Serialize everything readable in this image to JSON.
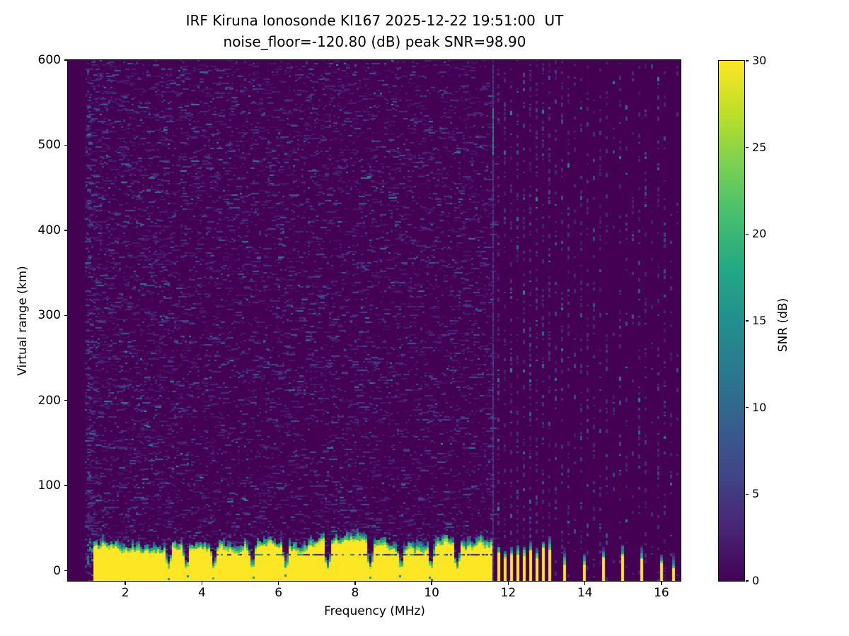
{
  "chart_data": {
    "type": "heatmap",
    "title": "IRF Kiruna Ionosonde KI167 2025-12-22 19:51:00  UT",
    "subtitle": "noise_floor=-120.80 (dB) peak SNR=98.90",
    "station": "KI167",
    "timestamp_ut": "2025-12-22 19:51:00",
    "noise_floor_db": -120.8,
    "peak_snr_db": 98.9,
    "xlabel": "Frequency (MHz)",
    "ylabel": "Virtual range (km)",
    "xlim": [
      0.5,
      16.5
    ],
    "ylim": [
      -12,
      600
    ],
    "x_ticks": [
      2,
      4,
      6,
      8,
      10,
      12,
      14,
      16
    ],
    "y_ticks": [
      0,
      100,
      200,
      300,
      400,
      500,
      600
    ],
    "grid": false,
    "legend": null,
    "colorbar": {
      "label": "SNR (dB)",
      "min": 0,
      "max": 30,
      "ticks": [
        0,
        5,
        10,
        15,
        20,
        25,
        30
      ],
      "position": "right"
    },
    "colormap": {
      "name": "viridis",
      "stops": [
        [
          0.0,
          [
            68,
            1,
            84
          ]
        ],
        [
          0.1,
          [
            72,
            36,
            117
          ]
        ],
        [
          0.2,
          [
            65,
            68,
            135
          ]
        ],
        [
          0.3,
          [
            53,
            95,
            141
          ]
        ],
        [
          0.4,
          [
            42,
            120,
            142
          ]
        ],
        [
          0.5,
          [
            33,
            144,
            141
          ]
        ],
        [
          0.6,
          [
            34,
            168,
            132
          ]
        ],
        [
          0.7,
          [
            68,
            190,
            112
          ]
        ],
        [
          0.8,
          [
            122,
            209,
            81
          ]
        ],
        [
          0.9,
          [
            189,
            223,
            38
          ]
        ],
        [
          1.0,
          [
            253,
            231,
            37
          ]
        ]
      ]
    },
    "features": {
      "seed": 42,
      "data_start_mhz": 0.94,
      "background_snr_db": 0,
      "clutter_band": {
        "freq_start_mhz": 1.16,
        "freq_end_mhz": 11.57,
        "yellow_top_km_range": [
          20,
          36
        ],
        "fringe_extent_km": 14,
        "artifact_line_km": 19.5,
        "snr_db": 30
      },
      "pre_band_fringe_mhz": [
        0.94,
        1.16
      ],
      "notches_mhz": [
        3.1,
        3.57,
        4.29,
        5.29,
        6.17,
        7.26,
        8.37,
        9.17,
        9.96,
        10.64
      ],
      "interference_streak": {
        "freq_mhz": 11.6,
        "bright_km": [
          490,
          545
        ]
      },
      "stripe_cluster_mhz": [
        11.75,
        11.92,
        12.08,
        12.25,
        12.42,
        12.58,
        12.75,
        12.92,
        13.08
      ],
      "isolated_stripes_mhz": [
        13.47,
        13.98,
        14.48,
        14.98,
        15.48,
        16.0
      ],
      "partial_stripe_mhz": 16.32,
      "speckle": {
        "dense_region_mhz": [
          0.94,
          11.57
        ],
        "column_grid_start_mhz": 11.73,
        "column_step_mhz": 0.167,
        "column_region_end_mhz": 16.45
      }
    }
  }
}
